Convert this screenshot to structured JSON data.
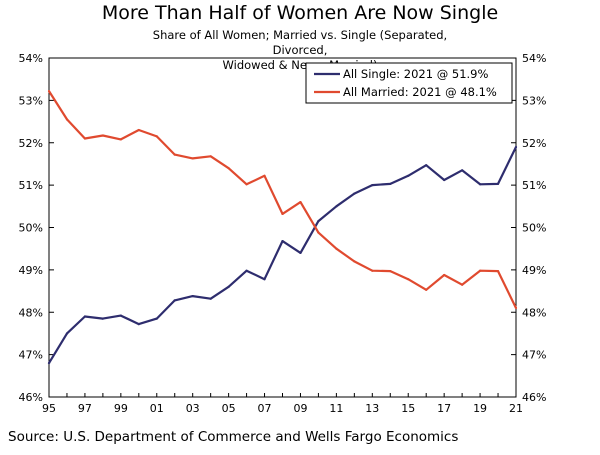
{
  "chart_data": {
    "type": "line",
    "title": "More Than Half of Women Are Now Single",
    "subtitle_lines": [
      "Share of All Women; Married vs. Single (Separated, Divorced,",
      "Widowed & Never Married)"
    ],
    "x": [
      1995,
      1996,
      1997,
      1998,
      1999,
      2000,
      2001,
      2002,
      2003,
      2004,
      2005,
      2006,
      2007,
      2008,
      2009,
      2010,
      2011,
      2012,
      2013,
      2014,
      2015,
      2016,
      2017,
      2018,
      2019,
      2020,
      2021
    ],
    "x_tick_values": [
      1995,
      1997,
      1999,
      2001,
      2003,
      2005,
      2007,
      2009,
      2011,
      2013,
      2015,
      2017,
      2019,
      2021
    ],
    "x_tick_labels": [
      "95",
      "97",
      "99",
      "01",
      "03",
      "05",
      "07",
      "09",
      "11",
      "13",
      "15",
      "17",
      "19",
      "21"
    ],
    "ylim": [
      46,
      54
    ],
    "y_ticks": [
      "46%",
      "47%",
      "48%",
      "49%",
      "50%",
      "51%",
      "52%",
      "53%",
      "54%"
    ],
    "legend_position": "top-right",
    "series": [
      {
        "name": "All Single: 2021 @ 51.9%",
        "color": "#2e2d6e",
        "values": [
          46.8,
          47.5,
          47.9,
          47.85,
          47.92,
          47.72,
          47.85,
          48.28,
          48.38,
          48.32,
          48.6,
          48.98,
          48.78,
          49.68,
          49.4,
          50.15,
          50.5,
          50.8,
          51.0,
          51.03,
          51.22,
          51.47,
          51.12,
          51.35,
          51.02,
          51.03,
          51.9
        ]
      },
      {
        "name": "All Married: 2021 @ 48.1%",
        "color": "#e04a2f",
        "values": [
          53.22,
          52.55,
          52.1,
          52.17,
          52.08,
          52.3,
          52.15,
          51.72,
          51.63,
          51.68,
          51.4,
          51.02,
          51.22,
          50.32,
          50.6,
          49.88,
          49.5,
          49.2,
          48.98,
          48.97,
          48.78,
          48.53,
          48.88,
          48.65,
          48.98,
          48.97,
          48.1
        ]
      }
    ]
  },
  "source": "Source: U.S. Department of Commerce and Wells Fargo Economics"
}
